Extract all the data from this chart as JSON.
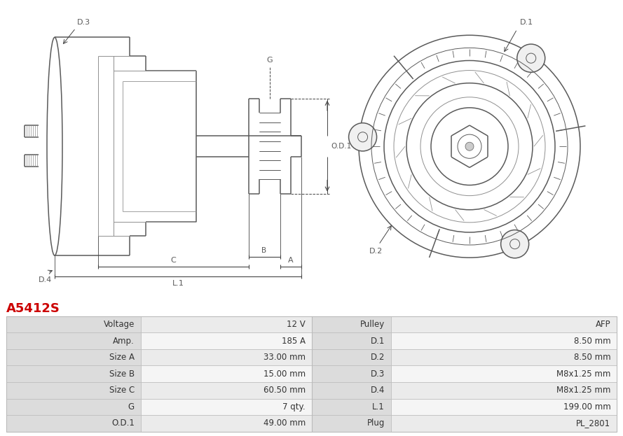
{
  "title": "A5412S",
  "title_color": "#cc0000",
  "table_rows": [
    [
      "Voltage",
      "12 V",
      "Pulley",
      "AFP"
    ],
    [
      "Amp.",
      "185 A",
      "D.1",
      "8.50 mm"
    ],
    [
      "Size A",
      "33.00 mm",
      "D.2",
      "8.50 mm"
    ],
    [
      "Size B",
      "15.00 mm",
      "D.3",
      "M8x1.25 mm"
    ],
    [
      "Size C",
      "60.50 mm",
      "D.4",
      "M8x1.25 mm"
    ],
    [
      "G",
      "7 qty.",
      "L.1",
      "199.00 mm"
    ],
    [
      "O.D.1",
      "49.00 mm",
      "Plug",
      "PL_2801"
    ]
  ],
  "line_color": "#5a5a5a",
  "line_color2": "#909090",
  "dim_color": "#444444",
  "header_bg": "#dcdcdc",
  "row_bg_even": "#ebebeb",
  "row_bg_odd": "#f5f5f5",
  "text_color": "#333333",
  "border_color": "#bbbbbb",
  "bg_color": "#ffffff"
}
